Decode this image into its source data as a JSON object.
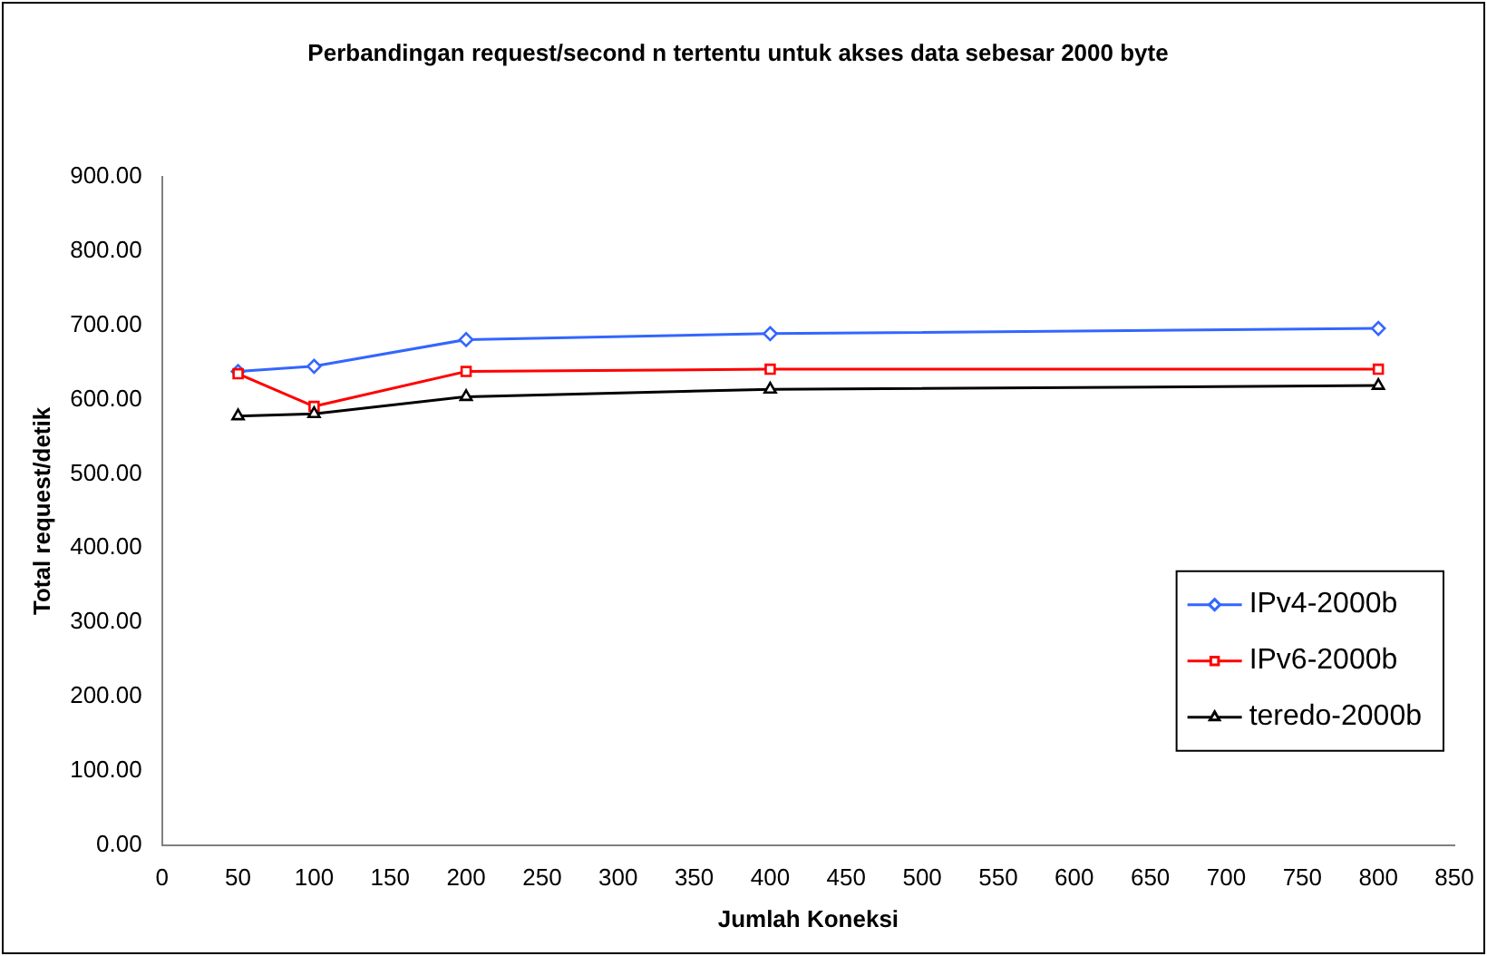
{
  "chart_data": {
    "type": "line",
    "title": "Perbandingan request/second n tertentu untuk akses data sebesar 2000 byte",
    "xlabel": "Jumlah Koneksi",
    "ylabel": "Total request/detik",
    "x": [
      50,
      100,
      200,
      400,
      800
    ],
    "series": [
      {
        "name": "IPv4-2000b",
        "color": "#3366ff",
        "values": [
          638,
          645,
          681,
          689,
          696
        ],
        "marker": "diamond"
      },
      {
        "name": "IPv6-2000b",
        "color": "#ff0000",
        "values": [
          635,
          591,
          638,
          641,
          641
        ],
        "marker": "square"
      },
      {
        "name": "teredo-2000b",
        "color": "#000000",
        "values": [
          578,
          581,
          604,
          614,
          619
        ],
        "marker": "triangle"
      }
    ],
    "xlim": [
      0,
      850
    ],
    "xticks": [
      0,
      50,
      100,
      150,
      200,
      250,
      300,
      350,
      400,
      450,
      500,
      550,
      600,
      650,
      700,
      750,
      800,
      850
    ],
    "ylim": [
      0,
      900
    ],
    "yticks": [
      {
        "value": 0,
        "label": "0.00"
      },
      {
        "value": 100,
        "label": "100.00"
      },
      {
        "value": 200,
        "label": "200.00"
      },
      {
        "value": 300,
        "label": "300.00"
      },
      {
        "value": 400,
        "label": "400.00"
      },
      {
        "value": 500,
        "label": "500.00"
      },
      {
        "value": 600,
        "label": "600.00"
      },
      {
        "value": 700,
        "label": "700.00"
      },
      {
        "value": 800,
        "label": "800.00"
      },
      {
        "value": 900,
        "label": "900.00"
      }
    ],
    "grid": false,
    "legend": "right",
    "line_style": "solid"
  }
}
